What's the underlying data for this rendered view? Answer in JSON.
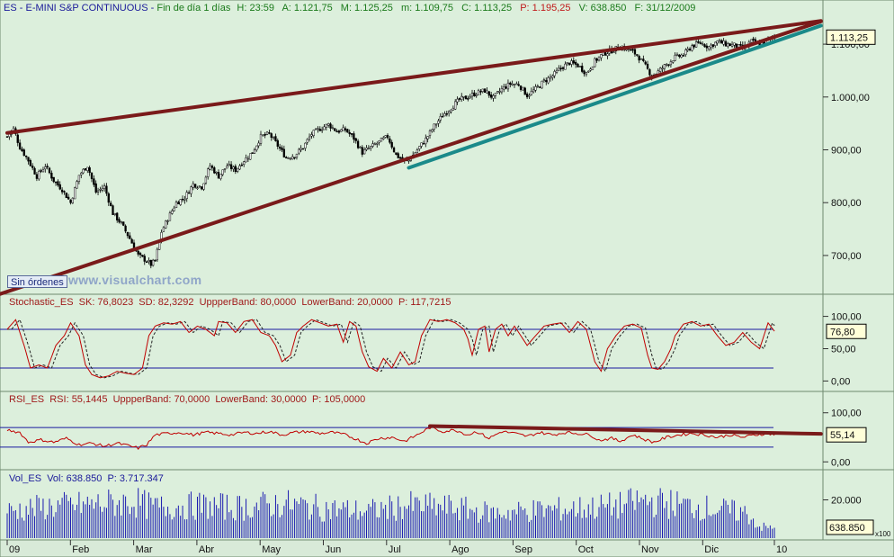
{
  "header": {
    "symbol": "ES",
    "name": "E-MINI S&P CONTINUOUS",
    "timeframe": "Fin de día 1 días",
    "time": "H: 23:59",
    "open": "A: 1.121,75",
    "high": "M: 1.125,25",
    "low": "m: 1.109,75",
    "close": "C: 1.113,25",
    "p_value": "P: 1.195,25",
    "volume": "V: 638.850",
    "date": "F: 31/12/2009"
  },
  "overlay": {
    "orders_button": "Sin órdenes",
    "watermark": "www.visualchart.com"
  },
  "colors": {
    "bg": "#d8ead8",
    "up": "#ffffff",
    "down": "#000000",
    "trend_red": "#7a1a1a",
    "trend_teal": "#1a8a8a",
    "stoch": "#c00000",
    "bands": "#1a1aa0",
    "volume": "#1a1ab0"
  },
  "chart_data": [
    {
      "type": "candlestick",
      "name": "price",
      "ylim": [
        630,
        1170
      ],
      "y_ticks": [
        {
          "v": 700,
          "label": "700,00"
        },
        {
          "v": 800,
          "label": "800,00"
        },
        {
          "v": 900,
          "label": "900,00"
        },
        {
          "v": 1000,
          "label": "1.000,00"
        },
        {
          "v": 1100,
          "label": "1.100,00"
        }
      ],
      "last_label": "1.113,25",
      "last_value": 1113.25,
      "waypoints": [
        [
          0,
          925
        ],
        [
          3,
          940
        ],
        [
          6,
          905
        ],
        [
          10,
          880
        ],
        [
          14,
          850
        ],
        [
          18,
          870
        ],
        [
          22,
          842
        ],
        [
          26,
          825
        ],
        [
          30,
          800
        ],
        [
          34,
          852
        ],
        [
          38,
          870
        ],
        [
          42,
          820
        ],
        [
          46,
          830
        ],
        [
          50,
          780
        ],
        [
          54,
          760
        ],
        [
          58,
          732
        ],
        [
          62,
          700
        ],
        [
          66,
          690
        ],
        [
          68,
          683
        ],
        [
          70,
          690
        ],
        [
          73,
          745
        ],
        [
          76,
          770
        ],
        [
          80,
          800
        ],
        [
          84,
          810
        ],
        [
          88,
          835
        ],
        [
          92,
          830
        ],
        [
          96,
          870
        ],
        [
          100,
          850
        ],
        [
          104,
          870
        ],
        [
          108,
          862
        ],
        [
          112,
          880
        ],
        [
          116,
          895
        ],
        [
          120,
          925
        ],
        [
          124,
          930
        ],
        [
          128,
          908
        ],
        [
          132,
          885
        ],
        [
          136,
          890
        ],
        [
          140,
          905
        ],
        [
          144,
          930
        ],
        [
          148,
          940
        ],
        [
          152,
          948
        ],
        [
          156,
          935
        ],
        [
          160,
          938
        ],
        [
          164,
          922
        ],
        [
          168,
          895
        ],
        [
          172,
          905
        ],
        [
          176,
          915
        ],
        [
          180,
          925
        ],
        [
          184,
          890
        ],
        [
          188,
          878
        ],
        [
          190,
          880
        ],
        [
          194,
          900
        ],
        [
          198,
          920
        ],
        [
          202,
          945
        ],
        [
          206,
          965
        ],
        [
          210,
          980
        ],
        [
          214,
          995
        ],
        [
          218,
          1000
        ],
        [
          222,
          1008
        ],
        [
          226,
          1012
        ],
        [
          230,
          998
        ],
        [
          234,
          1015
        ],
        [
          238,
          1025
        ],
        [
          242,
          1024
        ],
        [
          246,
          1003
        ],
        [
          250,
          1015
        ],
        [
          254,
          1030
        ],
        [
          258,
          1040
        ],
        [
          262,
          1055
        ],
        [
          266,
          1065
        ],
        [
          270,
          1060
        ],
        [
          274,
          1045
        ],
        [
          278,
          1068
        ],
        [
          282,
          1082
        ],
        [
          286,
          1088
        ],
        [
          290,
          1095
        ],
        [
          294,
          1090
        ],
        [
          298,
          1080
        ],
        [
          302,
          1058
        ],
        [
          305,
          1040
        ],
        [
          308,
          1048
        ],
        [
          312,
          1062
        ],
        [
          316,
          1075
        ],
        [
          320,
          1080
        ],
        [
          324,
          1097
        ],
        [
          328,
          1102
        ],
        [
          332,
          1095
        ],
        [
          336,
          1105
        ],
        [
          340,
          1100
        ],
        [
          344,
          1098
        ],
        [
          348,
          1092
        ],
        [
          352,
          1105
        ],
        [
          356,
          1100
        ],
        [
          360,
          1108
        ],
        [
          363,
          1113
        ]
      ],
      "trendlines": [
        {
          "color": "red",
          "from": [
            0,
            932
          ],
          "to": [
            385,
            1144
          ]
        },
        {
          "color": "red",
          "from": [
            -20,
            605
          ],
          "to": [
            385,
            1143
          ]
        },
        {
          "color": "teal",
          "from": [
            190,
            866
          ],
          "to": [
            385,
            1135
          ]
        }
      ]
    },
    {
      "type": "line",
      "name": "stochastic",
      "header": "Stochastic_ES  SK: 76,8023  SD: 82,3292  UppperBand: 80,0000  LowerBand: 20,0000  P: 117,7215",
      "ylim": [
        -5,
        105
      ],
      "bands": [
        80,
        20
      ],
      "y_ticks": [
        {
          "v": 100,
          "label": "100,00"
        },
        {
          "v": 50,
          "label": "50,00"
        },
        {
          "v": 0,
          "label": "0,00"
        }
      ],
      "last_label": "76,80",
      "last_value": 76.8,
      "waypoints": [
        [
          0,
          80
        ],
        [
          4,
          95
        ],
        [
          8,
          55
        ],
        [
          11,
          20
        ],
        [
          15,
          25
        ],
        [
          19,
          20
        ],
        [
          23,
          55
        ],
        [
          27,
          70
        ],
        [
          30,
          90
        ],
        [
          34,
          70
        ],
        [
          37,
          25
        ],
        [
          40,
          10
        ],
        [
          44,
          5
        ],
        [
          48,
          8
        ],
        [
          52,
          15
        ],
        [
          56,
          12
        ],
        [
          60,
          10
        ],
        [
          64,
          20
        ],
        [
          67,
          70
        ],
        [
          70,
          85
        ],
        [
          74,
          90
        ],
        [
          78,
          88
        ],
        [
          82,
          92
        ],
        [
          86,
          75
        ],
        [
          90,
          85
        ],
        [
          94,
          80
        ],
        [
          98,
          70
        ],
        [
          100,
          92
        ],
        [
          104,
          90
        ],
        [
          108,
          75
        ],
        [
          112,
          92
        ],
        [
          116,
          95
        ],
        [
          120,
          75
        ],
        [
          124,
          70
        ],
        [
          127,
          55
        ],
        [
          130,
          30
        ],
        [
          134,
          40
        ],
        [
          137,
          75
        ],
        [
          140,
          85
        ],
        [
          144,
          95
        ],
        [
          148,
          90
        ],
        [
          152,
          85
        ],
        [
          156,
          88
        ],
        [
          159,
          60
        ],
        [
          162,
          92
        ],
        [
          165,
          85
        ],
        [
          168,
          45
        ],
        [
          171,
          22
        ],
        [
          175,
          15
        ],
        [
          178,
          35
        ],
        [
          182,
          20
        ],
        [
          186,
          45
        ],
        [
          190,
          25
        ],
        [
          193,
          30
        ],
        [
          196,
          70
        ],
        [
          200,
          95
        ],
        [
          204,
          92
        ],
        [
          208,
          95
        ],
        [
          212,
          90
        ],
        [
          216,
          80
        ],
        [
          218,
          65
        ],
        [
          220,
          40
        ],
        [
          223,
          80
        ],
        [
          226,
          85
        ],
        [
          228,
          45
        ],
        [
          231,
          80
        ],
        [
          234,
          88
        ],
        [
          237,
          70
        ],
        [
          240,
          85
        ],
        [
          243,
          70
        ],
        [
          246,
          55
        ],
        [
          250,
          70
        ],
        [
          254,
          85
        ],
        [
          258,
          88
        ],
        [
          262,
          90
        ],
        [
          266,
          75
        ],
        [
          270,
          92
        ],
        [
          274,
          80
        ],
        [
          276,
          55
        ],
        [
          278,
          30
        ],
        [
          281,
          15
        ],
        [
          284,
          50
        ],
        [
          288,
          70
        ],
        [
          292,
          85
        ],
        [
          296,
          88
        ],
        [
          300,
          82
        ],
        [
          303,
          40
        ],
        [
          305,
          20
        ],
        [
          308,
          18
        ],
        [
          311,
          30
        ],
        [
          314,
          50
        ],
        [
          316,
          70
        ],
        [
          320,
          88
        ],
        [
          324,
          92
        ],
        [
          328,
          85
        ],
        [
          332,
          88
        ],
        [
          336,
          70
        ],
        [
          340,
          55
        ],
        [
          344,
          60
        ],
        [
          348,
          75
        ],
        [
          352,
          60
        ],
        [
          356,
          50
        ],
        [
          360,
          90
        ],
        [
          363,
          77
        ]
      ]
    },
    {
      "type": "line",
      "name": "rsi",
      "header": "RSI_ES  RSI: 55,1445  UppperBand: 70,0000  LowerBand: 30,0000  P: 105,0000",
      "ylim": [
        -5,
        105
      ],
      "bands": [
        70,
        30
      ],
      "y_ticks": [
        {
          "v": 100,
          "label": "100,00"
        },
        {
          "v": 0,
          "label": "0,00"
        }
      ],
      "last_label": "55,14",
      "last_value": 55.14,
      "trendline": {
        "from": [
          200,
          73
        ],
        "to": [
          385,
          57
        ]
      },
      "waypoints": [
        [
          0,
          65
        ],
        [
          6,
          60
        ],
        [
          10,
          40
        ],
        [
          16,
          45
        ],
        [
          22,
          40
        ],
        [
          28,
          48
        ],
        [
          34,
          35
        ],
        [
          40,
          38
        ],
        [
          46,
          32
        ],
        [
          52,
          38
        ],
        [
          58,
          32
        ],
        [
          62,
          28
        ],
        [
          66,
          35
        ],
        [
          70,
          55
        ],
        [
          76,
          58
        ],
        [
          82,
          60
        ],
        [
          88,
          55
        ],
        [
          94,
          60
        ],
        [
          100,
          58
        ],
        [
          106,
          55
        ],
        [
          112,
          60
        ],
        [
          118,
          58
        ],
        [
          124,
          62
        ],
        [
          130,
          55
        ],
        [
          136,
          60
        ],
        [
          142,
          62
        ],
        [
          148,
          58
        ],
        [
          154,
          60
        ],
        [
          160,
          55
        ],
        [
          166,
          45
        ],
        [
          170,
          38
        ],
        [
          176,
          48
        ],
        [
          182,
          50
        ],
        [
          188,
          42
        ],
        [
          194,
          55
        ],
        [
          200,
          70
        ],
        [
          206,
          62
        ],
        [
          212,
          65
        ],
        [
          218,
          55
        ],
        [
          222,
          62
        ],
        [
          228,
          48
        ],
        [
          234,
          62
        ],
        [
          240,
          58
        ],
        [
          246,
          52
        ],
        [
          252,
          60
        ],
        [
          258,
          55
        ],
        [
          264,
          60
        ],
        [
          270,
          58
        ],
        [
          276,
          55
        ],
        [
          280,
          44
        ],
        [
          286,
          48
        ],
        [
          290,
          42
        ],
        [
          296,
          55
        ],
        [
          302,
          45
        ],
        [
          306,
          40
        ],
        [
          312,
          50
        ],
        [
          318,
          55
        ],
        [
          324,
          58
        ],
        [
          330,
          55
        ],
        [
          336,
          50
        ],
        [
          342,
          55
        ],
        [
          348,
          50
        ],
        [
          354,
          55
        ],
        [
          360,
          58
        ],
        [
          363,
          55
        ]
      ]
    },
    {
      "type": "bar",
      "name": "volume",
      "header": "Vol_ES  Vol: 638.850  P: 3.717.347",
      "ylim": [
        0,
        32000
      ],
      "y_ticks": [
        {
          "v": 20000,
          "label": "20.000"
        }
      ],
      "last_label": "638.850",
      "scale_label": "x100",
      "waypoints": [
        [
          0,
          14000
        ],
        [
          20,
          16500
        ],
        [
          40,
          17500
        ],
        [
          60,
          19000
        ],
        [
          70,
          16000
        ],
        [
          90,
          17000
        ],
        [
          110,
          16000
        ],
        [
          130,
          18000
        ],
        [
          150,
          15500
        ],
        [
          170,
          14000
        ],
        [
          190,
          17000
        ],
        [
          210,
          16000
        ],
        [
          230,
          13000
        ],
        [
          250,
          14500
        ],
        [
          270,
          15500
        ],
        [
          290,
          17000
        ],
        [
          300,
          19500
        ],
        [
          310,
          18500
        ],
        [
          330,
          16000
        ],
        [
          350,
          13000
        ],
        [
          356,
          6000
        ],
        [
          363,
          5000
        ]
      ]
    }
  ],
  "x_axis": {
    "labels": [
      "09",
      "Feb",
      "Mar",
      "Abr",
      "May",
      "Jun",
      "Jul",
      "Ago",
      "Sep",
      "Oct",
      "Nov",
      "Dic",
      "10"
    ]
  }
}
